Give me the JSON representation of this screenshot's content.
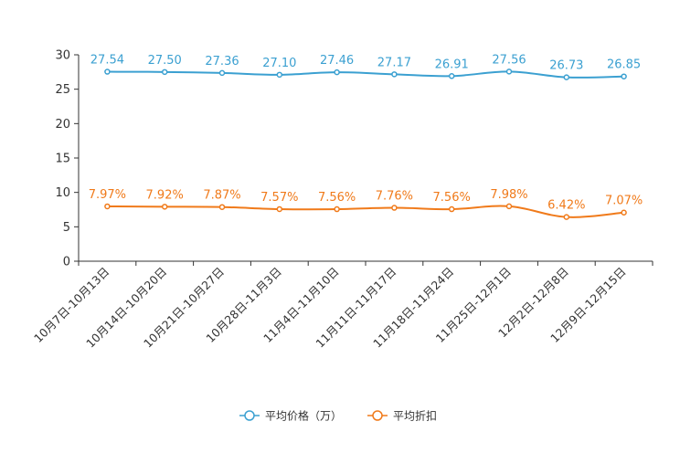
{
  "chart_data": {
    "type": "line",
    "categories": [
      "10月7日-10月13日",
      "10月14日-10月20日",
      "10月21日-10月27日",
      "10月28日-11月3日",
      "11月4日-11月10日",
      "11月11日-11月17日",
      "11月18日-11月24日",
      "11月25日-12月1日",
      "12月2日-12月8日",
      "12月9日-12月15日"
    ],
    "ylim": [
      0,
      30
    ],
    "yticks": [
      0,
      5,
      10,
      15,
      20,
      25,
      30
    ],
    "series": [
      {
        "name": "平均价格（万）",
        "color": "#3ba0d1",
        "values": [
          27.54,
          27.5,
          27.36,
          27.1,
          27.46,
          27.17,
          26.91,
          27.56,
          26.73,
          26.85
        ],
        "labels": [
          "27.54",
          "27.50",
          "27.36",
          "27.10",
          "27.46",
          "27.17",
          "26.91",
          "27.56",
          "26.73",
          "26.85"
        ]
      },
      {
        "name": "平均折扣",
        "color": "#f07a1a",
        "values": [
          7.97,
          7.92,
          7.87,
          7.57,
          7.56,
          7.76,
          7.56,
          7.98,
          6.42,
          7.07
        ],
        "labels": [
          "7.97%",
          "7.92%",
          "7.87%",
          "7.57%",
          "7.56%",
          "7.76%",
          "7.56%",
          "7.98%",
          "6.42%",
          "7.07%"
        ]
      }
    ],
    "legend_position": "bottom-center",
    "grid": false
  }
}
